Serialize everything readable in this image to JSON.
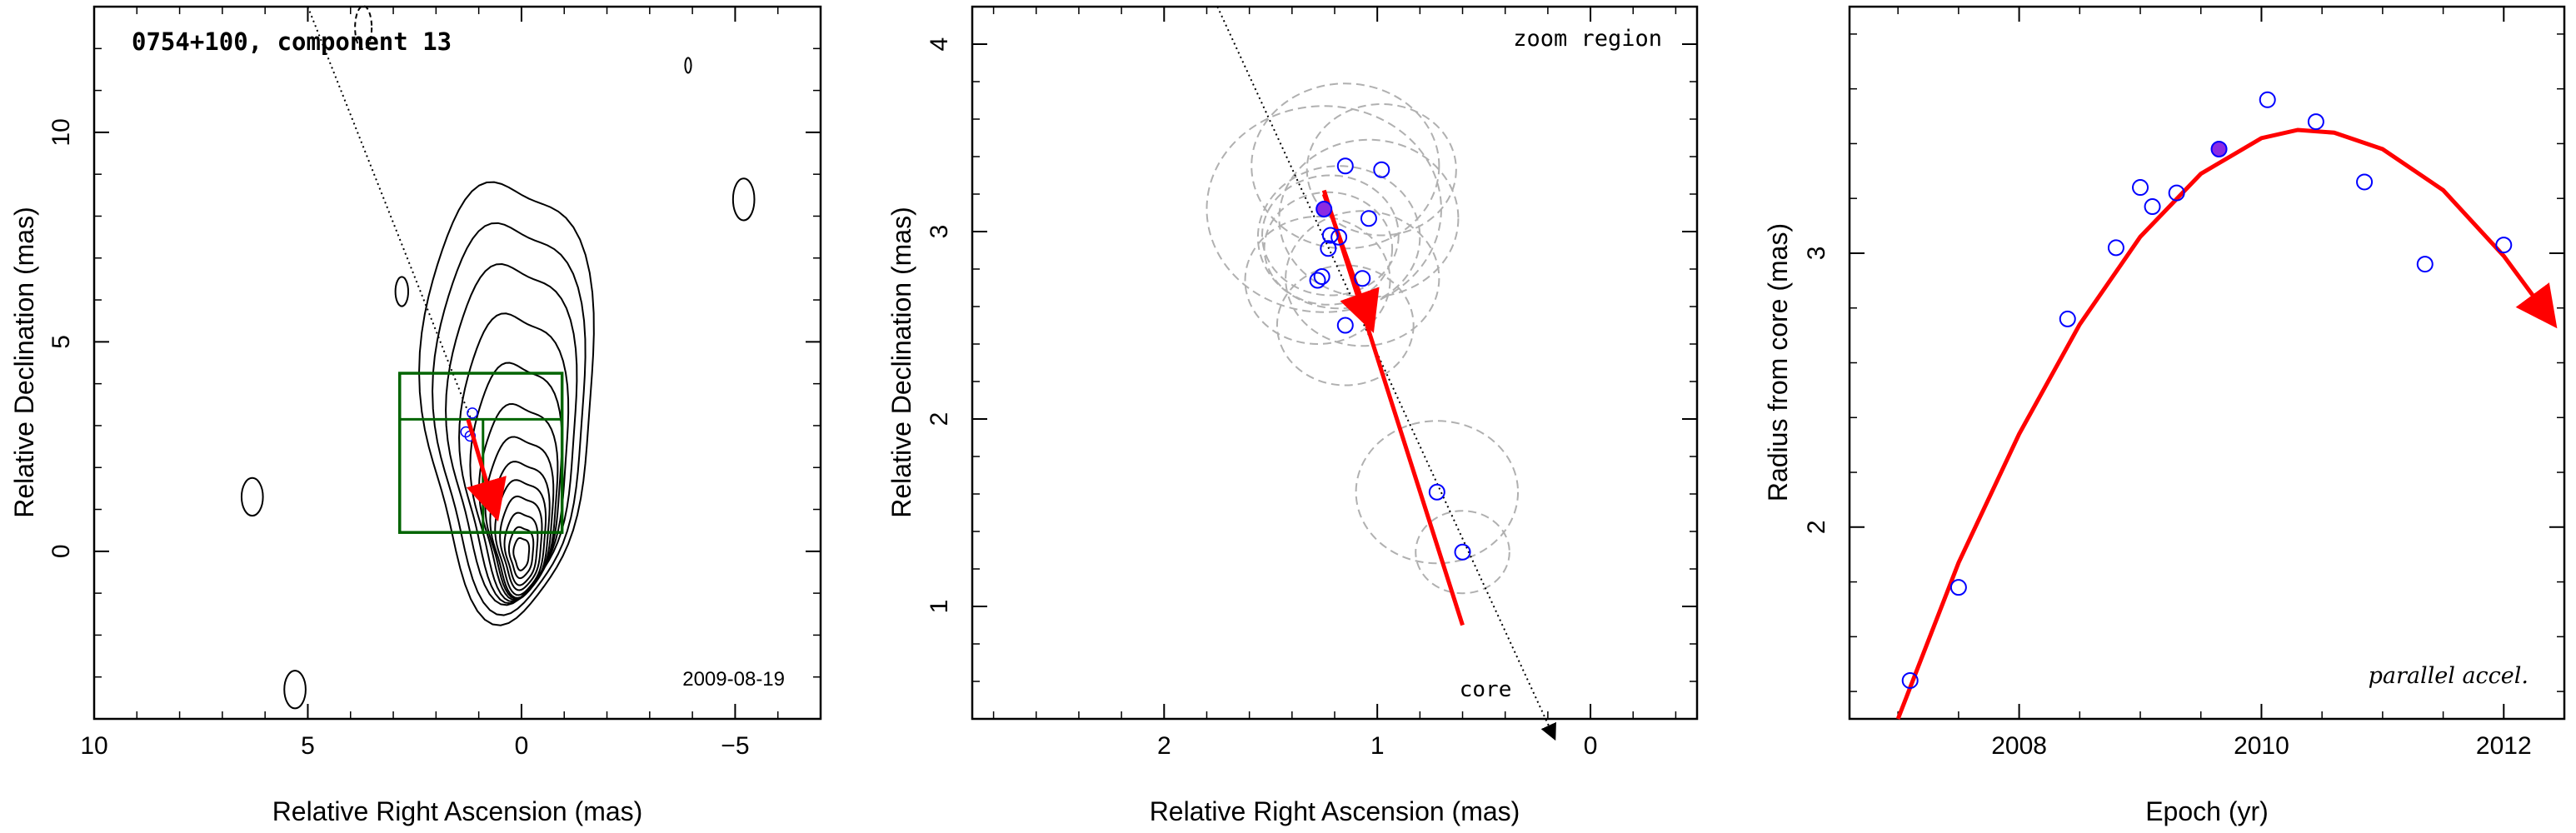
{
  "chart_data": [
    {
      "type": "scatter",
      "subtype": "contour-map",
      "title": "0754+100, component 13",
      "date_label": "2009-08-19",
      "xlabel": "Relative Right Ascension (mas)",
      "ylabel": "Relative Declination (mas)",
      "xlim": [
        10,
        -7
      ],
      "ylim": [
        -4,
        13
      ],
      "x_reversed": true,
      "xticks": [
        10,
        5,
        0,
        -5
      ],
      "yticks": [
        0,
        5,
        10
      ],
      "zoom_box": {
        "x": [
          2.85,
          -0.95
        ],
        "y": [
          0.45,
          4.25
        ],
        "hline_y": 3.15,
        "vline_x": 0.9
      },
      "trajectory_arrow": {
        "from": [
          1.25,
          3.15
        ],
        "to": [
          0.6,
          0.9
        ],
        "color": "#ff0000"
      },
      "direction_line": {
        "from": [
          5.0,
          13.0
        ],
        "to": [
          1.2,
          3.2
        ],
        "style": "dotted"
      },
      "markers": [
        {
          "x": 1.3,
          "y": 2.85
        },
        {
          "x": 1.15,
          "y": 3.3
        },
        {
          "x": 1.2,
          "y": 2.75
        }
      ],
      "contours_note": "nested jet contours around core at (0,0)",
      "grid": false,
      "colors": {
        "box": "#006400",
        "arrow": "#ff0000",
        "markers": "#0000ff"
      }
    },
    {
      "type": "scatter",
      "title": "zoom region",
      "xlabel": "Relative Right Ascension (mas)",
      "ylabel": "Relative Declination (mas)",
      "xlim": [
        2.9,
        -0.5
      ],
      "ylim": [
        0.4,
        4.2
      ],
      "x_reversed": true,
      "xticks": [
        2,
        1,
        0
      ],
      "yticks": [
        1,
        2,
        3,
        4
      ],
      "core_label": "core",
      "points": [
        {
          "x": 1.25,
          "y": 3.12,
          "filled": true
        },
        {
          "x": 1.15,
          "y": 3.35
        },
        {
          "x": 0.98,
          "y": 3.33
        },
        {
          "x": 1.04,
          "y": 3.07
        },
        {
          "x": 1.22,
          "y": 2.98
        },
        {
          "x": 1.18,
          "y": 2.97
        },
        {
          "x": 1.23,
          "y": 2.91
        },
        {
          "x": 1.07,
          "y": 2.75
        },
        {
          "x": 1.28,
          "y": 2.74
        },
        {
          "x": 1.26,
          "y": 2.76
        },
        {
          "x": 1.15,
          "y": 2.5
        },
        {
          "x": 0.72,
          "y": 1.61
        },
        {
          "x": 0.6,
          "y": 1.29
        }
      ],
      "circles": [
        {
          "x": 1.25,
          "y": 3.12,
          "r": 0.55
        },
        {
          "x": 1.15,
          "y": 3.35,
          "r": 0.44
        },
        {
          "x": 0.98,
          "y": 3.33,
          "r": 0.35
        },
        {
          "x": 1.04,
          "y": 3.07,
          "r": 0.42
        },
        {
          "x": 1.22,
          "y": 2.98,
          "r": 0.32
        },
        {
          "x": 1.18,
          "y": 2.97,
          "r": 0.38
        },
        {
          "x": 1.23,
          "y": 2.91,
          "r": 0.3
        },
        {
          "x": 1.07,
          "y": 2.75,
          "r": 0.36
        },
        {
          "x": 1.28,
          "y": 2.74,
          "r": 0.34
        },
        {
          "x": 1.15,
          "y": 2.5,
          "r": 0.32
        },
        {
          "x": 0.72,
          "y": 1.61,
          "r": 0.38
        },
        {
          "x": 0.6,
          "y": 1.29,
          "r": 0.22
        }
      ],
      "velocity_line": {
        "from": [
          1.25,
          3.22
        ],
        "to": [
          0.6,
          0.9
        ]
      },
      "velocity_arrow": {
        "from": [
          1.25,
          3.2
        ],
        "to": [
          1.03,
          2.5
        ]
      },
      "direction_line": {
        "from": [
          1.75,
          4.2
        ],
        "to": [
          0.17,
          0.3
        ],
        "style": "dotted"
      },
      "colors": {
        "points": "#0000ff",
        "filled_point": "#8a2be2",
        "arrow": "#ff0000",
        "circles": "#b0b0b0"
      }
    },
    {
      "type": "line",
      "xlabel": "Epoch (yr)",
      "ylabel": "Radius from core (mas)",
      "annotation": "parallel accel.",
      "xlim": [
        2006.6,
        2012.5
      ],
      "ylim": [
        1.3,
        3.9
      ],
      "xticks": [
        2008,
        2010,
        2012
      ],
      "yticks": [
        2,
        3
      ],
      "points": [
        {
          "x": 2007.1,
          "y": 1.44
        },
        {
          "x": 2007.5,
          "y": 1.78
        },
        {
          "x": 2008.4,
          "y": 2.76
        },
        {
          "x": 2008.8,
          "y": 3.02
        },
        {
          "x": 2009.0,
          "y": 3.24
        },
        {
          "x": 2009.1,
          "y": 3.17
        },
        {
          "x": 2009.3,
          "y": 3.22
        },
        {
          "x": 2009.65,
          "y": 3.38,
          "filled": true
        },
        {
          "x": 2010.05,
          "y": 3.56
        },
        {
          "x": 2010.45,
          "y": 3.48
        },
        {
          "x": 2010.85,
          "y": 3.26
        },
        {
          "x": 2011.35,
          "y": 2.96
        },
        {
          "x": 2012.0,
          "y": 3.03
        }
      ],
      "fit_curve": [
        {
          "x": 2007.0,
          "y": 1.3
        },
        {
          "x": 2007.5,
          "y": 1.87
        },
        {
          "x": 2008.0,
          "y": 2.34
        },
        {
          "x": 2008.5,
          "y": 2.74
        },
        {
          "x": 2009.0,
          "y": 3.06
        },
        {
          "x": 2009.5,
          "y": 3.29
        },
        {
          "x": 2010.0,
          "y": 3.42
        },
        {
          "x": 2010.3,
          "y": 3.45
        },
        {
          "x": 2010.6,
          "y": 3.44
        },
        {
          "x": 2011.0,
          "y": 3.38
        },
        {
          "x": 2011.5,
          "y": 3.23
        },
        {
          "x": 2012.0,
          "y": 2.99
        },
        {
          "x": 2012.4,
          "y": 2.75
        }
      ],
      "colors": {
        "points": "#0000ff",
        "filled_point": "#8a2be2",
        "fit": "#ff0000"
      },
      "grid": false
    }
  ]
}
